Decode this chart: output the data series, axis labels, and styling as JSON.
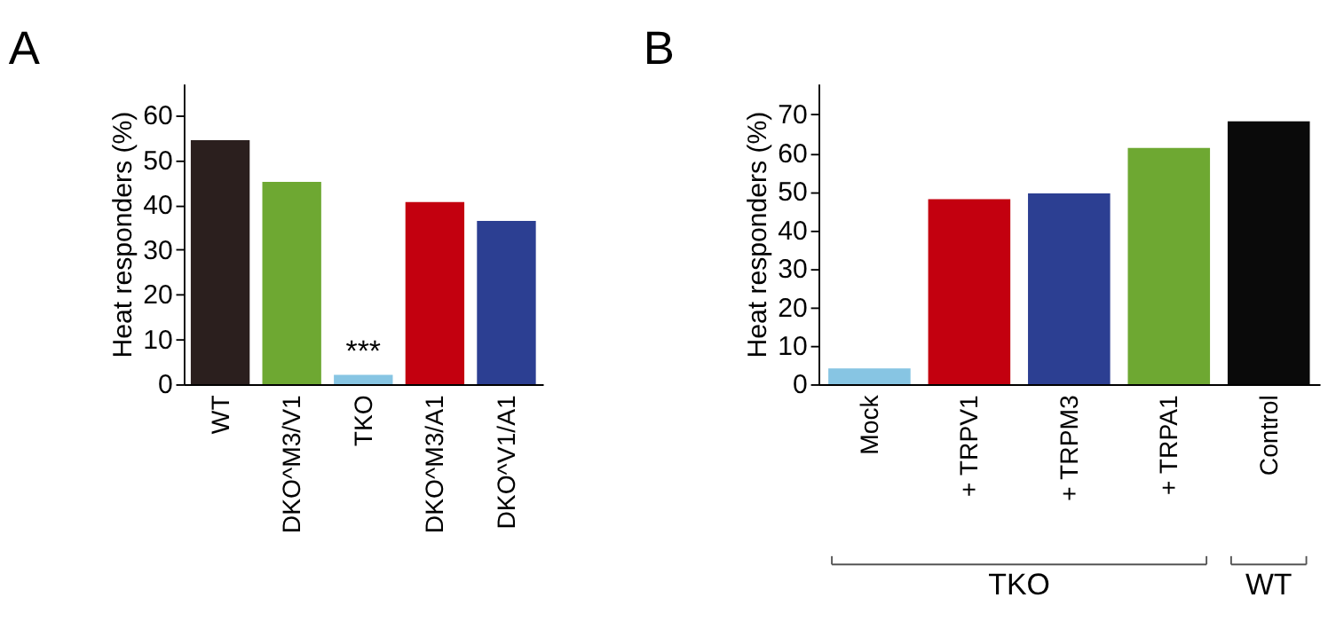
{
  "chart_data": [
    {
      "type": "bar",
      "title": "A",
      "ylabel": "Heat responders (%)",
      "categories": [
        "WT",
        "DKO^M3/V1",
        "TKO",
        "DKO^M3/A1",
        "DKO^V1/A1"
      ],
      "values": [
        54.4,
        45.1,
        2.1,
        40.6,
        36.4
      ],
      "colors": [
        "#2b1f1e",
        "#6ea832",
        "#87c5e3",
        "#c3000f",
        "#2c3f92"
      ],
      "ylim": [
        0,
        67
      ],
      "yticks": [
        0,
        10,
        20,
        30,
        40,
        50,
        60
      ],
      "grid": false,
      "annotations": [
        {
          "text": "***",
          "x": "TKO",
          "y": 2.1
        }
      ]
    },
    {
      "type": "bar",
      "title": "B",
      "ylabel": "Heat responders (%)",
      "categories": [
        "Mock",
        "+ TRPV1",
        "+ TRPM3",
        "+ TRPA1",
        "Control"
      ],
      "values": [
        4.1,
        48,
        49.5,
        61.3,
        68.2
      ],
      "colors": [
        "#87c5e3",
        "#c3000f",
        "#2c3f92",
        "#6ea832",
        "#0a0a0a"
      ],
      "ylim": [
        0,
        78
      ],
      "yticks": [
        0,
        10,
        20,
        30,
        40,
        50,
        60,
        70
      ],
      "grid": false,
      "annotations": [
        "TKO",
        "WT"
      ]
    }
  ]
}
